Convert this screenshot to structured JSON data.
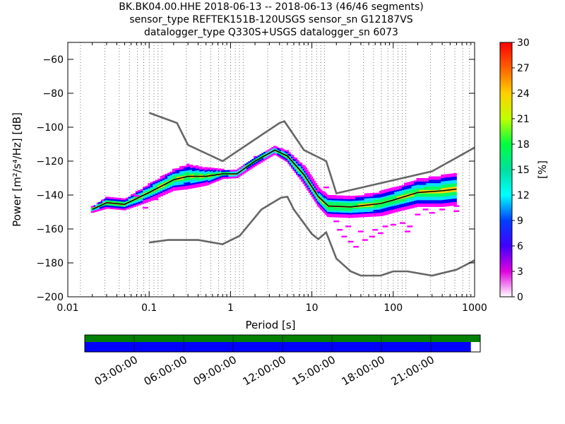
{
  "title": {
    "line1": "BK.BK04.00.HHE   2018-06-13 -- 2018-06-13  (46/46 segments)",
    "line2": "sensor_type REFTEK151B-120USGS sensor_sn G12187VS",
    "line3": "datalogger_type Q330S+USGS datalogger_sn 6073"
  },
  "chart_data": {
    "type": "heatmap",
    "xlabel": "Period [s]",
    "ylabel": "Power [m²/s⁴/Hz] [dB]",
    "x_scale": "log",
    "xlim": [
      0.01,
      1000
    ],
    "ylim": [
      -200,
      -50
    ],
    "x_ticks": [
      {
        "value": 0.01,
        "label": "0.01"
      },
      {
        "value": 0.1,
        "label": "0.1"
      },
      {
        "value": 1,
        "label": "1"
      },
      {
        "value": 10,
        "label": "10"
      },
      {
        "value": 100,
        "label": "100"
      },
      {
        "value": 1000,
        "label": "1000"
      }
    ],
    "y_ticks": [
      {
        "value": -60,
        "label": "−60"
      },
      {
        "value": -80,
        "label": "−80"
      },
      {
        "value": -100,
        "label": "−100"
      },
      {
        "value": -120,
        "label": "−120"
      },
      {
        "value": -140,
        "label": "−140"
      },
      {
        "value": -160,
        "label": "−160"
      },
      {
        "value": -180,
        "label": "−180"
      },
      {
        "value": -200,
        "label": "−200"
      }
    ],
    "grid": "dotted vertical at period bins",
    "colorbar": {
      "label": "[%]",
      "range": [
        0,
        30
      ],
      "ticks": [
        "0",
        "3",
        "6",
        "9",
        "12",
        "15",
        "18",
        "21",
        "24",
        "27",
        "30"
      ]
    },
    "series": [
      {
        "color": "#666666",
        "points": [
          [
            0.1,
            -91.5
          ],
          [
            0.22,
            -97.5
          ],
          [
            0.3,
            -110.5
          ],
          [
            0.8,
            -120
          ],
          [
            4,
            -97.5
          ],
          [
            4.6,
            -96.5
          ],
          [
            8,
            -113.5
          ],
          [
            15,
            -120
          ],
          [
            20,
            -139
          ],
          [
            300,
            -126
          ],
          [
            1000,
            -112
          ]
        ]
      },
      {
        "color": "#666666",
        "points": [
          [
            0.1,
            -168
          ],
          [
            0.17,
            -166.5
          ],
          [
            0.4,
            -166.5
          ],
          [
            0.8,
            -169
          ],
          [
            1.3,
            -164
          ],
          [
            2.4,
            -148.5
          ],
          [
            4.2,
            -141.5
          ],
          [
            5,
            -141
          ],
          [
            6,
            -148.5
          ],
          [
            10,
            -163
          ],
          [
            12,
            -166
          ],
          [
            15,
            -162
          ],
          [
            20,
            -177.5
          ],
          [
            30,
            -185
          ],
          [
            40,
            -187.5
          ],
          [
            70,
            -187.5
          ],
          [
            100,
            -185
          ],
          [
            150,
            -185
          ],
          [
            300,
            -187.5
          ],
          [
            600,
            -184
          ],
          [
            1000,
            -178.5
          ]
        ]
      },
      {
        "color": "#000000",
        "points": [
          [
            0.02,
            -148.5
          ],
          [
            0.03,
            -144.5
          ],
          [
            0.05,
            -145.5
          ],
          [
            0.1,
            -138.5
          ],
          [
            0.2,
            -131
          ],
          [
            0.3,
            -129
          ],
          [
            0.5,
            -129
          ],
          [
            0.8,
            -127.5
          ],
          [
            1.2,
            -127.5
          ],
          [
            2,
            -120
          ],
          [
            3.5,
            -113.5
          ],
          [
            5,
            -117
          ],
          [
            8,
            -128
          ],
          [
            12,
            -141
          ],
          [
            16,
            -146.5
          ],
          [
            30,
            -147
          ],
          [
            70,
            -145
          ],
          [
            100,
            -143
          ],
          [
            200,
            -138.5
          ],
          [
            400,
            -137.5
          ],
          [
            600,
            -136.5
          ]
        ]
      }
    ],
    "density_bands": [
      {
        "points": [
          [
            0.02,
            -148.5,
            1.5
          ],
          [
            0.03,
            -144.5,
            3
          ],
          [
            0.05,
            -145.5,
            3
          ],
          [
            0.1,
            -138.5,
            5
          ],
          [
            0.2,
            -131,
            6
          ],
          [
            0.3,
            -129,
            7
          ],
          [
            0.5,
            -129,
            5
          ],
          [
            0.8,
            -127.5,
            2.5
          ],
          [
            1.2,
            -127.5,
            2
          ],
          [
            2,
            -120,
            2.5
          ],
          [
            3.5,
            -113.5,
            2
          ],
          [
            5,
            -117,
            3
          ],
          [
            8,
            -128,
            5
          ],
          [
            12,
            -141,
            5
          ],
          [
            16,
            -146.5,
            6
          ],
          [
            30,
            -147,
            6
          ],
          [
            70,
            -145,
            7
          ],
          [
            100,
            -143,
            7
          ],
          [
            200,
            -138.5,
            8
          ],
          [
            400,
            -137.5,
            9
          ],
          [
            600,
            -136.5,
            9
          ]
        ]
      }
    ],
    "scatter_outliers": [
      [
        0.07,
        -140.5
      ],
      [
        0.09,
        -147.5
      ],
      [
        0.12,
        -142.5
      ],
      [
        0.5,
        -124.5
      ],
      [
        18,
        -152.5
      ],
      [
        22,
        -160.5
      ],
      [
        25,
        -164.5
      ],
      [
        30,
        -167.5
      ],
      [
        35,
        -170.5
      ],
      [
        45,
        -166.5
      ],
      [
        55,
        -164.5
      ],
      [
        60,
        -160.5
      ],
      [
        80,
        -158.5
      ],
      [
        100,
        -157.5
      ],
      [
        130,
        -156.5
      ],
      [
        160,
        -158.5
      ],
      [
        200,
        -151.5
      ],
      [
        300,
        -150.5
      ],
      [
        400,
        -148.5
      ],
      [
        600,
        -146.5
      ],
      [
        600,
        -149.5
      ],
      [
        40,
        -161.5
      ],
      [
        70,
        -162.5
      ],
      [
        150,
        -161.5
      ],
      [
        20,
        -155.5
      ],
      [
        28,
        -158.5
      ],
      [
        12,
        -137.5
      ],
      [
        15,
        -135.5
      ],
      [
        18,
        -140.5
      ],
      [
        250,
        -148.5
      ]
    ]
  },
  "time_axis": {
    "labels": [
      "03:00:00",
      "06:00:00",
      "09:00:00",
      "12:00:00",
      "15:00:00",
      "18:00:00",
      "21:00:00"
    ],
    "hours": [
      3,
      6,
      9,
      12,
      15,
      18,
      21
    ],
    "coverage_end_hour": 23.43,
    "data_color": "#008000",
    "gap_color": "#0000ff"
  }
}
